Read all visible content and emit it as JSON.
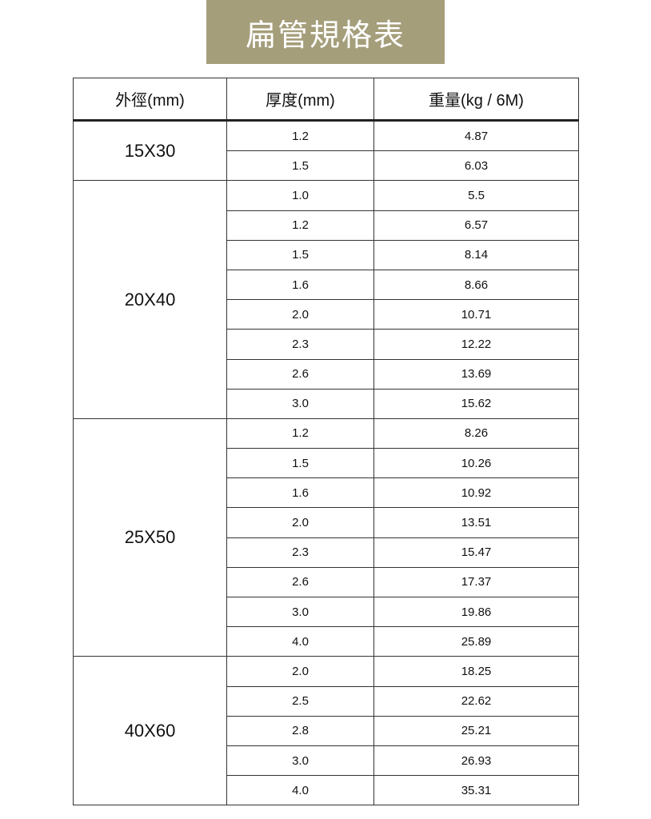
{
  "title": "扁管規格表",
  "table": {
    "headers": [
      "外徑(mm)",
      "厚度(mm)",
      "重量(kg / 6M)"
    ],
    "groups": [
      {
        "size": "15X30",
        "rows": [
          [
            "1.2",
            "4.87"
          ],
          [
            "1.5",
            "6.03"
          ]
        ]
      },
      {
        "size": "20X40",
        "rows": [
          [
            "1.0",
            "5.5"
          ],
          [
            "1.2",
            "6.57"
          ],
          [
            "1.5",
            "8.14"
          ],
          [
            "1.6",
            "8.66"
          ],
          [
            "2.0",
            "10.71"
          ],
          [
            "2.3",
            "12.22"
          ],
          [
            "2.6",
            "13.69"
          ],
          [
            "3.0",
            "15.62"
          ]
        ]
      },
      {
        "size": "25X50",
        "rows": [
          [
            "1.2",
            "8.26"
          ],
          [
            "1.5",
            "10.26"
          ],
          [
            "1.6",
            "10.92"
          ],
          [
            "2.0",
            "13.51"
          ],
          [
            "2.3",
            "15.47"
          ],
          [
            "2.6",
            "17.37"
          ],
          [
            "3.0",
            "19.86"
          ],
          [
            "4.0",
            "25.89"
          ]
        ]
      },
      {
        "size": "40X60",
        "rows": [
          [
            "2.0",
            "18.25"
          ],
          [
            "2.5",
            "22.62"
          ],
          [
            "2.8",
            "25.21"
          ],
          [
            "3.0",
            "26.93"
          ],
          [
            "4.0",
            "35.31"
          ]
        ]
      }
    ]
  }
}
